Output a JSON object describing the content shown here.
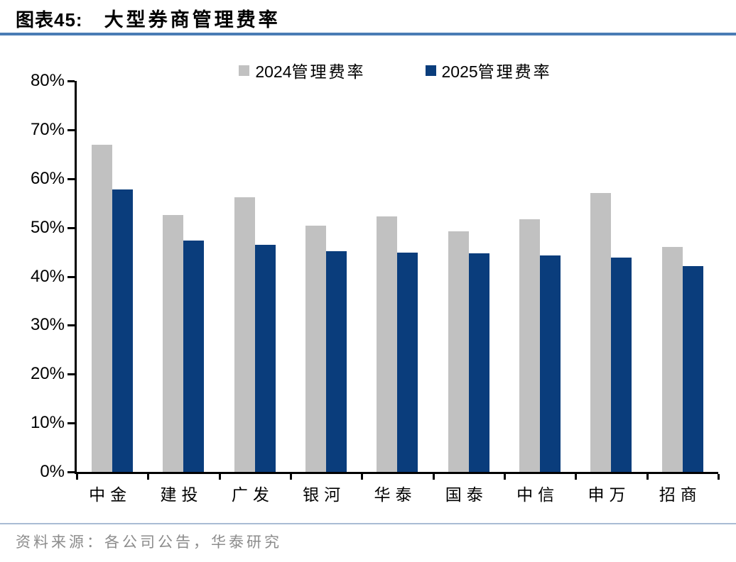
{
  "header": {
    "figure_label": "图表45:",
    "title": "大型券商管理费率"
  },
  "legend": [
    {
      "label": "2024管理费率",
      "color": "#C1C1C1"
    },
    {
      "label": "2025管理费率",
      "color": "#0A3D7C"
    }
  ],
  "chart_data": {
    "type": "bar",
    "title": "大型券商管理费率",
    "categories": [
      "中金",
      "建投",
      "广发",
      "银河",
      "华泰",
      "国泰",
      "中信",
      "申万",
      "招商"
    ],
    "series": [
      {
        "name": "2024管理费率",
        "color": "#C1C1C1",
        "values": [
          67.0,
          52.6,
          56.2,
          50.4,
          52.2,
          49.2,
          51.7,
          57.0,
          46.1
        ]
      },
      {
        "name": "2025管理费率",
        "color": "#0A3D7C",
        "values": [
          57.8,
          47.4,
          46.5,
          45.2,
          44.8,
          44.7,
          44.3,
          43.9,
          42.1
        ]
      }
    ],
    "xlabel": "",
    "ylabel": "",
    "ylim": [
      0,
      80
    ],
    "ytick_step": 10,
    "ytick_suffix": "%",
    "grid": false,
    "legend_position": "top-center"
  },
  "footer": {
    "source": "资料来源：各公司公告，华泰研究"
  },
  "colors": {
    "title_rule": "#4A7CB5",
    "footer_rule": "#A9BCD4",
    "axis": "#000000",
    "source_text": "#8C8C8C"
  }
}
